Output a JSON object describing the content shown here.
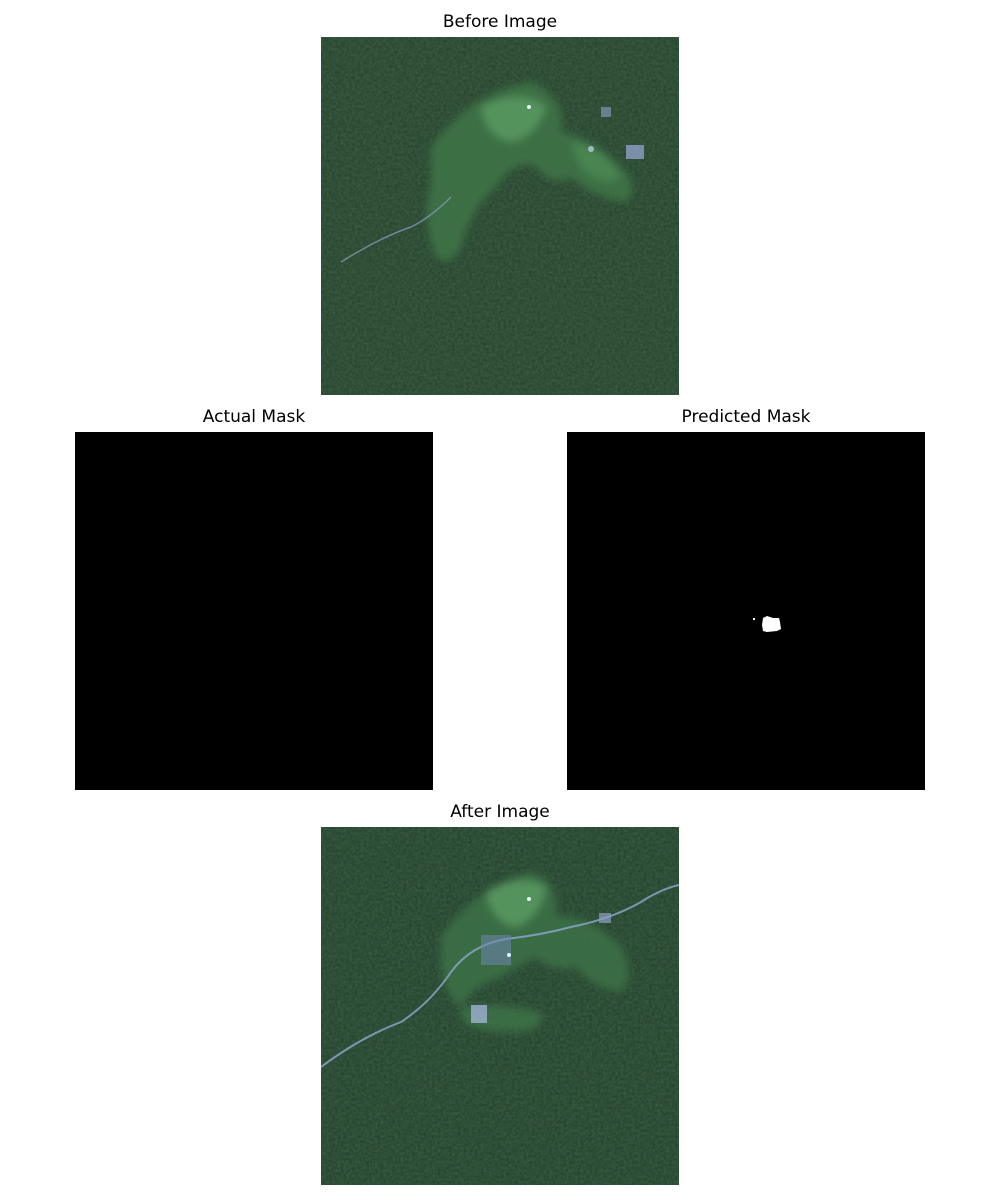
{
  "figure": {
    "panels": [
      {
        "key": "before",
        "title": "Before Image",
        "kind": "satellite-image"
      },
      {
        "key": "actual",
        "title": "Actual Mask",
        "kind": "binary-mask",
        "foreground": "none"
      },
      {
        "key": "predicted",
        "title": "Predicted Mask",
        "kind": "binary-mask",
        "foreground": "small-blob"
      },
      {
        "key": "after",
        "title": "After Image",
        "kind": "satellite-image"
      }
    ]
  },
  "colors": {
    "forest_dark": "#1f3a22",
    "forest_mid": "#27472a",
    "clearing": "#3f7a48",
    "clearing_light": "#5a9a60",
    "water": "#8fa6c8",
    "mask_bg": "#000000",
    "mask_fg": "#ffffff"
  }
}
